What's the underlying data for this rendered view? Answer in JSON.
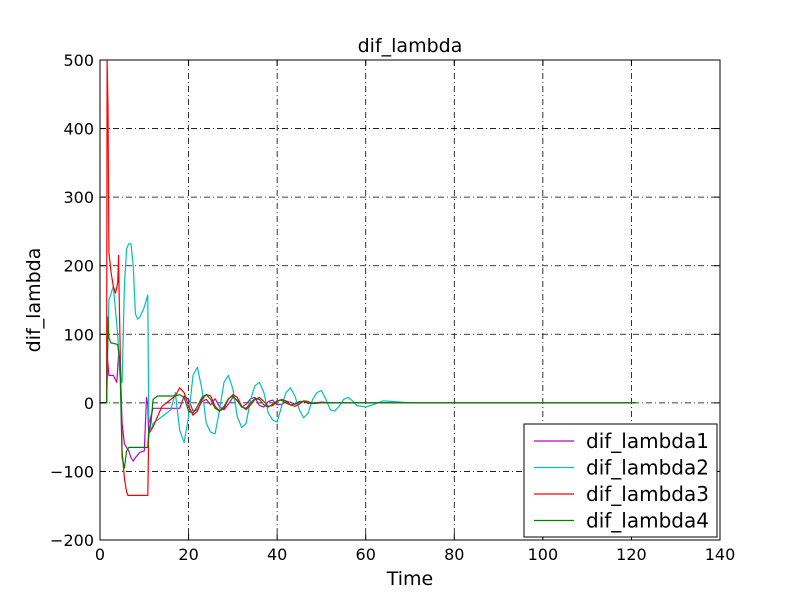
{
  "chart_data": {
    "type": "line",
    "title": "dif_lambda",
    "xlabel": "Time",
    "ylabel": "dif_lambda",
    "xlim": [
      0,
      140
    ],
    "ylim": [
      -200,
      500
    ],
    "xticks": [
      0,
      20,
      40,
      60,
      80,
      100,
      120,
      140
    ],
    "yticks": [
      -200,
      -100,
      0,
      100,
      200,
      300,
      400,
      500
    ],
    "xtick_labels": [
      "0",
      "20",
      "40",
      "60",
      "80",
      "100",
      "120",
      "140"
    ],
    "ytick_labels": [
      "−200",
      "−100",
      "0",
      "100",
      "200",
      "300",
      "400",
      "500"
    ],
    "grid": true,
    "legend_position": "lower-right",
    "series": [
      {
        "name": "dif_lambda1",
        "color": "#bf00bf",
        "x": [
          0,
          1.5,
          1.7,
          2,
          3,
          3.8,
          4.2,
          4.5,
          5,
          5.5,
          6,
          6.5,
          7,
          7.5,
          8,
          9,
          10,
          10.5,
          10.8,
          11,
          11.5,
          12,
          14,
          16,
          18,
          19,
          20,
          21,
          22,
          23,
          24,
          25,
          26,
          27,
          28,
          29,
          30,
          31,
          32,
          33,
          34,
          35,
          36,
          37,
          38,
          39,
          40,
          41,
          42,
          43,
          44,
          45,
          46,
          47,
          48,
          50,
          52,
          55,
          60,
          65,
          70,
          80,
          100,
          121
        ],
        "y": [
          0,
          0,
          65,
          40,
          40,
          30,
          70,
          65,
          -30,
          -60,
          -65,
          -70,
          -80,
          -85,
          -80,
          -72,
          -70,
          8,
          -3,
          -50,
          -20,
          -8,
          -8,
          -8,
          -8,
          10,
          5,
          -12,
          -10,
          2,
          5,
          -3,
          6,
          -6,
          -10,
          -2,
          8,
          4,
          -6,
          -2,
          6,
          8,
          -4,
          -6,
          2,
          4,
          -3,
          -2,
          2,
          1,
          -2,
          0,
          2,
          -1,
          0,
          1,
          0,
          0,
          0,
          0,
          0,
          0,
          0,
          0
        ]
      },
      {
        "name": "dif_lambda2",
        "color": "#00bfbf",
        "x": [
          0,
          1.5,
          2,
          3,
          4,
          4.5,
          5,
          5.5,
          6,
          6.5,
          7,
          7.5,
          8,
          8.5,
          9,
          10,
          10.8,
          11,
          11.5,
          12,
          14,
          16,
          17,
          18,
          19,
          20,
          21,
          22,
          23,
          24,
          25,
          26,
          27,
          28,
          29,
          30,
          31,
          32,
          33,
          34,
          35,
          36,
          37,
          38,
          39,
          40,
          41,
          42,
          43,
          44,
          45,
          46,
          47,
          48,
          49,
          50,
          51,
          52,
          53,
          54,
          55,
          56,
          57,
          58,
          60,
          62,
          64,
          66,
          70,
          80,
          100,
          121
        ],
        "y": [
          0,
          0,
          150,
          170,
          100,
          40,
          30,
          170,
          225,
          232,
          232,
          200,
          130,
          122,
          125,
          140,
          157,
          -20,
          -40,
          -30,
          -20,
          -10,
          15,
          -40,
          -58,
          -20,
          40,
          52,
          20,
          -30,
          -43,
          -45,
          -10,
          30,
          40,
          20,
          -20,
          -36,
          -30,
          5,
          25,
          30,
          15,
          -15,
          -25,
          -28,
          -5,
          15,
          22,
          10,
          -10,
          -22,
          -15,
          5,
          15,
          18,
          5,
          -10,
          -12,
          -5,
          5,
          8,
          3,
          -4,
          -6,
          -2,
          3,
          2,
          0,
          0,
          0,
          0
        ]
      },
      {
        "name": "dif_lambda3",
        "color": "#ff0000",
        "x": [
          0,
          1.5,
          1.6,
          1.8,
          2,
          2.5,
          3,
          3.5,
          4,
          4.2,
          4.3,
          4.5,
          5,
          5.5,
          6,
          6.3,
          7,
          8,
          9,
          10,
          10.8,
          11,
          11.5,
          12,
          14,
          16,
          17,
          18,
          19,
          20,
          21,
          22,
          23,
          24,
          25,
          26,
          27,
          28,
          29,
          30,
          31,
          32,
          33,
          34,
          35,
          36,
          37,
          38,
          39,
          40,
          41,
          42,
          43,
          44,
          45,
          46,
          47,
          48,
          50,
          52,
          55,
          60,
          65,
          70,
          80,
          100,
          121
        ],
        "y": [
          0,
          0,
          500,
          430,
          220,
          190,
          170,
          160,
          175,
          215,
          170,
          100,
          -70,
          -110,
          -130,
          -135,
          -135,
          -135,
          -135,
          -135,
          -135,
          -45,
          -40,
          -35,
          -5,
          5,
          10,
          22,
          15,
          -5,
          -18,
          -12,
          5,
          12,
          10,
          -5,
          -12,
          -8,
          5,
          12,
          8,
          -5,
          -10,
          -3,
          5,
          8,
          2,
          -5,
          -4,
          2,
          5,
          3,
          -3,
          -5,
          -2,
          3,
          2,
          -1,
          1,
          0,
          0,
          0,
          0,
          0,
          0,
          0,
          0
        ]
      },
      {
        "name": "dif_lambda4",
        "color": "#007f00",
        "x": [
          0,
          1.5,
          1.8,
          2,
          2.5,
          3,
          4,
          4.5,
          5,
          5.5,
          6,
          6.5,
          7,
          8,
          9,
          10,
          10.8,
          11,
          11.5,
          12,
          13,
          14,
          16,
          17,
          18,
          19,
          20,
          21,
          22,
          23,
          24,
          25,
          26,
          27,
          28,
          29,
          30,
          31,
          32,
          33,
          34,
          35,
          36,
          37,
          38,
          39,
          40,
          41,
          42,
          43,
          44,
          45,
          46,
          47,
          48,
          50,
          52,
          55,
          60,
          65,
          70,
          80,
          100,
          121
        ],
        "y": [
          0,
          0,
          125,
          95,
          87,
          87,
          85,
          60,
          -80,
          -95,
          -70,
          -65,
          -65,
          -65,
          -65,
          -65,
          -65,
          -40,
          -30,
          5,
          10,
          10,
          10,
          10,
          12,
          8,
          -12,
          -15,
          -5,
          8,
          12,
          5,
          -8,
          -12,
          -5,
          6,
          10,
          3,
          -6,
          -8,
          0,
          6,
          5,
          -3,
          -6,
          -2,
          3,
          4,
          0,
          -3,
          -2,
          2,
          2,
          0,
          -1,
          0,
          0,
          0,
          0,
          0,
          0,
          0,
          0,
          0
        ]
      }
    ]
  }
}
